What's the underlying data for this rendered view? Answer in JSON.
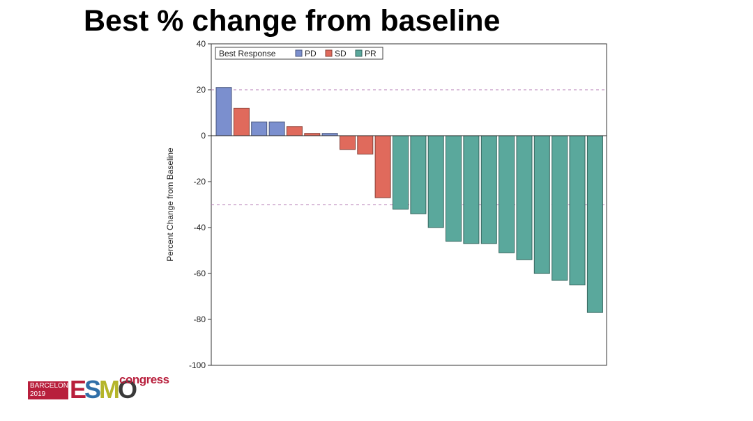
{
  "slide": {
    "title": "Best % change from baseline"
  },
  "logo": {
    "line1": "BARCELONA",
    "line2": "2019",
    "word": "ESMO",
    "congress": "congress",
    "colors": [
      "#b81f3c",
      "#2f6fa8",
      "#b5b52a",
      "#3a3a3a"
    ]
  },
  "chart_data": {
    "type": "bar",
    "title": "",
    "xlabel": "",
    "ylabel": "Percent Change from Baseline",
    "ylim": [
      -100,
      40
    ],
    "yticks": [
      40,
      20,
      0,
      -20,
      -40,
      -60,
      -80,
      -100
    ],
    "reference_lines": [
      20,
      -30
    ],
    "legend": {
      "title": "Best Response",
      "position": "top-left",
      "entries": [
        {
          "name": "PD",
          "color": "#7b8fce"
        },
        {
          "name": "SD",
          "color": "#e06a5c"
        },
        {
          "name": "PR",
          "color": "#5aa89c"
        }
      ]
    },
    "bars": [
      {
        "response": "PD",
        "value": 21
      },
      {
        "response": "SD",
        "value": 12
      },
      {
        "response": "PD",
        "value": 6
      },
      {
        "response": "PD",
        "value": 6
      },
      {
        "response": "SD",
        "value": 4
      },
      {
        "response": "SD",
        "value": 1
      },
      {
        "response": "PD",
        "value": 1
      },
      {
        "response": "SD",
        "value": -6
      },
      {
        "response": "SD",
        "value": -8
      },
      {
        "response": "SD",
        "value": -27
      },
      {
        "response": "PR",
        "value": -32
      },
      {
        "response": "PR",
        "value": -34
      },
      {
        "response": "PR",
        "value": -40
      },
      {
        "response": "PR",
        "value": -46
      },
      {
        "response": "PR",
        "value": -47
      },
      {
        "response": "PR",
        "value": -47
      },
      {
        "response": "PR",
        "value": -51
      },
      {
        "response": "PR",
        "value": -54
      },
      {
        "response": "PR",
        "value": -60
      },
      {
        "response": "PR",
        "value": -63
      },
      {
        "response": "PR",
        "value": -65
      },
      {
        "response": "PR",
        "value": -77
      }
    ]
  }
}
